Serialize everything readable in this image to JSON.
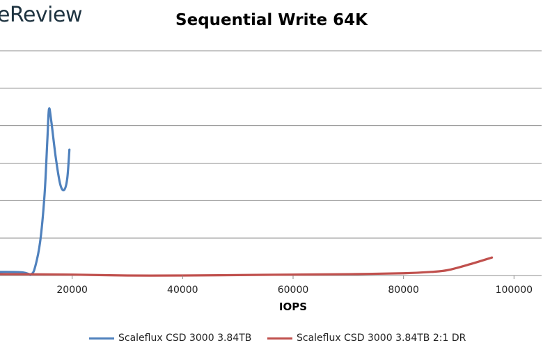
{
  "brand": {
    "text": "eReview"
  },
  "chart_data": {
    "type": "line",
    "title": "Sequential Write 64K",
    "xlabel": "IOPS",
    "ylabel": "",
    "xlim": [
      0,
      105000
    ],
    "ylim": [
      0,
      500
    ],
    "xticks": [
      "20000",
      "40000",
      "60000",
      "80000",
      "100000"
    ],
    "grid": true,
    "legend": "bottom",
    "series": [
      {
        "name": "Scaleflux CSD 3000 3.84TB",
        "color": "#4f81bd",
        "points": [
          [
            0,
            5
          ],
          [
            4000,
            7
          ],
          [
            8000,
            8
          ],
          [
            11000,
            7
          ],
          [
            12200,
            3
          ],
          [
            12500,
            2
          ],
          [
            13200,
            15
          ],
          [
            14200,
            75
          ],
          [
            15000,
            180
          ],
          [
            15500,
            300
          ],
          [
            15800,
            370
          ],
          [
            16200,
            345
          ],
          [
            17000,
            265
          ],
          [
            17800,
            205
          ],
          [
            18500,
            190
          ],
          [
            19100,
            215
          ],
          [
            19500,
            280
          ]
        ]
      },
      {
        "name": "Scaleflux CSD 3000 3.84TB 2:1 DR",
        "color": "#c0504d",
        "points": [
          [
            7000,
            3
          ],
          [
            20000,
            2
          ],
          [
            30000,
            0
          ],
          [
            40000,
            0
          ],
          [
            50000,
            1
          ],
          [
            60000,
            2
          ],
          [
            70000,
            3
          ],
          [
            80000,
            5
          ],
          [
            85000,
            8
          ],
          [
            88000,
            12
          ],
          [
            92000,
            25
          ],
          [
            96000,
            40
          ]
        ]
      }
    ]
  }
}
